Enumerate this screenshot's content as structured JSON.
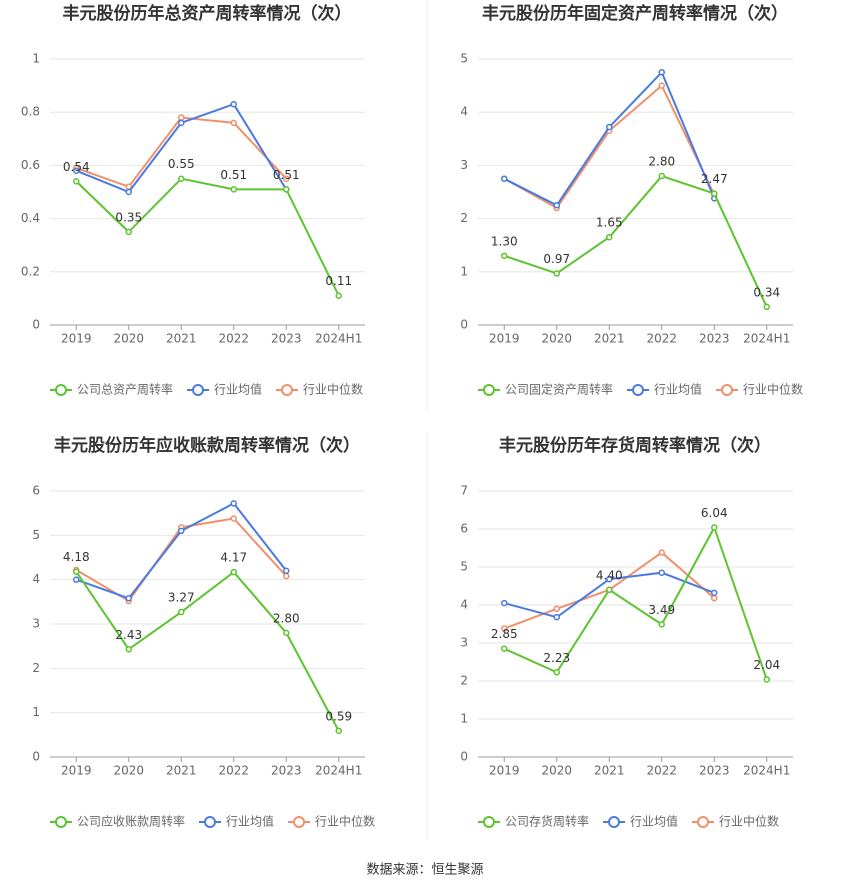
{
  "chart_data": [
    {
      "type": "line",
      "title": "丰元股份历年总资产周转率情况（次）",
      "categories": [
        "2019",
        "2020",
        "2021",
        "2022",
        "2023",
        "2024H1"
      ],
      "ylim": [
        0,
        1
      ],
      "yticks": [
        0,
        0.2,
        0.4,
        0.6,
        0.8,
        1
      ],
      "grid": true,
      "legend": "bottom",
      "series": [
        {
          "name": "公司总资产周转率",
          "color": "#5cc42e",
          "values": [
            0.54,
            0.35,
            0.55,
            0.51,
            0.51,
            0.11
          ],
          "value_labels": [
            "0.54",
            "0.35",
            "0.55",
            "0.51",
            "0.51",
            "0.11"
          ]
        },
        {
          "name": "行业均值",
          "color": "#4a7ae0",
          "values": [
            0.58,
            0.5,
            0.76,
            0.83,
            0.51,
            null
          ]
        },
        {
          "name": "行业中位数",
          "color": "#f0906b",
          "values": [
            0.59,
            0.52,
            0.78,
            0.76,
            0.55,
            null
          ]
        }
      ]
    },
    {
      "type": "line",
      "title": "丰元股份历年固定资产周转率情况（次）",
      "categories": [
        "2019",
        "2020",
        "2021",
        "2022",
        "2023",
        "2024H1"
      ],
      "ylim": [
        0,
        5
      ],
      "yticks": [
        0,
        1,
        2,
        3,
        4,
        5
      ],
      "grid": true,
      "legend": "bottom",
      "series": [
        {
          "name": "公司固定资产周转率",
          "color": "#5cc42e",
          "values": [
            1.3,
            0.97,
            1.65,
            2.8,
            2.47,
            0.34
          ],
          "value_labels": [
            "1.30",
            "0.97",
            "1.65",
            "2.80",
            "2.47",
            "0.34"
          ]
        },
        {
          "name": "行业均值",
          "color": "#4a7ae0",
          "values": [
            2.75,
            2.25,
            3.72,
            4.75,
            2.38,
            null
          ]
        },
        {
          "name": "行业中位数",
          "color": "#f0906b",
          "values": [
            2.75,
            2.2,
            3.65,
            4.5,
            2.45,
            null
          ]
        }
      ]
    },
    {
      "type": "line",
      "title": "丰元股份历年应收账款周转率情况（次）",
      "categories": [
        "2019",
        "2020",
        "2021",
        "2022",
        "2023",
        "2024H1"
      ],
      "ylim": [
        0,
        6
      ],
      "yticks": [
        0,
        1,
        2,
        3,
        4,
        5,
        6
      ],
      "grid": true,
      "legend": "bottom",
      "series": [
        {
          "name": "公司应收账款周转率",
          "color": "#5cc42e",
          "values": [
            4.18,
            2.43,
            3.27,
            4.17,
            2.8,
            0.59
          ],
          "value_labels": [
            "4.18",
            "2.43",
            "3.27",
            "4.17",
            "2.80",
            "0.59"
          ]
        },
        {
          "name": "行业均值",
          "color": "#4a7ae0",
          "values": [
            4.0,
            3.58,
            5.1,
            5.72,
            4.2,
            null
          ]
        },
        {
          "name": "行业中位数",
          "color": "#f0906b",
          "values": [
            4.22,
            3.52,
            5.18,
            5.38,
            4.08,
            null
          ]
        }
      ]
    },
    {
      "type": "line",
      "title": "丰元股份历年存货周转率情况（次）",
      "categories": [
        "2019",
        "2020",
        "2021",
        "2022",
        "2023",
        "2024H1"
      ],
      "ylim": [
        0,
        7
      ],
      "yticks": [
        0,
        1,
        2,
        3,
        4,
        5,
        6,
        7
      ],
      "grid": true,
      "legend": "bottom",
      "series": [
        {
          "name": "公司存货周转率",
          "color": "#5cc42e",
          "values": [
            2.85,
            2.23,
            4.4,
            3.49,
            6.04,
            2.04
          ],
          "value_labels": [
            "2.85",
            "2.23",
            "4.40",
            "3.49",
            "6.04",
            "2.04"
          ]
        },
        {
          "name": "行业均值",
          "color": "#4a7ae0",
          "values": [
            4.05,
            3.68,
            4.68,
            4.85,
            4.32,
            null
          ]
        },
        {
          "name": "行业中位数",
          "color": "#f0906b",
          "values": [
            3.38,
            3.9,
            4.4,
            5.38,
            4.18,
            null
          ]
        }
      ]
    }
  ],
  "footer": {
    "source": "数据来源：恒生聚源"
  }
}
